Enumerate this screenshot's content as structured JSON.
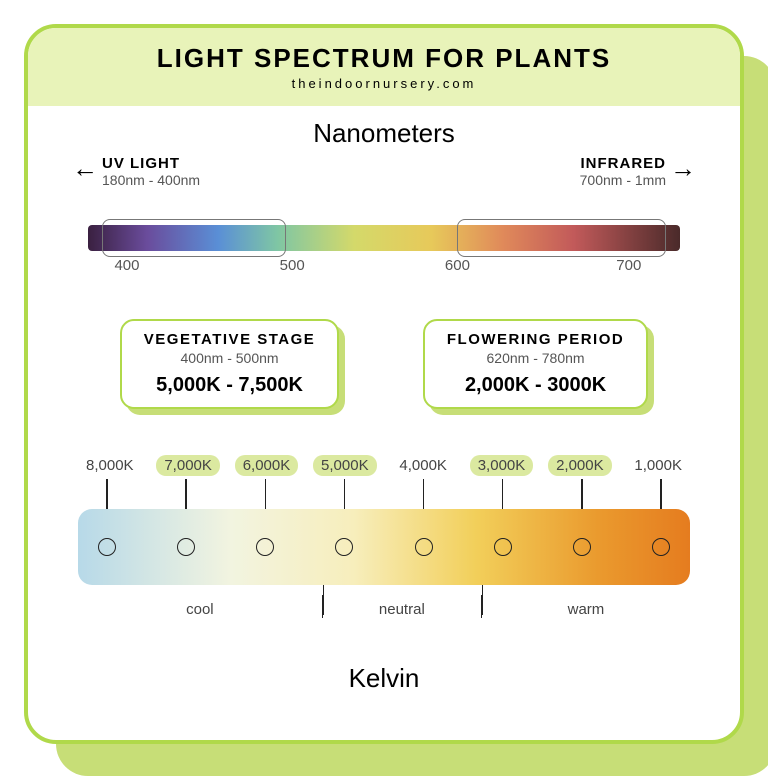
{
  "colors": {
    "border": "#b0d94a",
    "header_band": "#e8f3b9",
    "shadow": "#c7de77",
    "accent": "#b0d94a",
    "highlight": "#dbe9a0",
    "text": "#1a1a1a",
    "subtext": "#555555"
  },
  "header": {
    "title": "LIGHT SPECTRUM FOR PLANTS",
    "source": "theindoornursery.com"
  },
  "nanometers": {
    "title": "Nanometers",
    "left_label": "UV LIGHT",
    "left_range": "180nm - 400nm",
    "right_label": "INFRARED",
    "right_range": "700nm - 1mm",
    "spectrum_gradient": [
      {
        "stop": 0,
        "color": "#3a2040"
      },
      {
        "stop": 10,
        "color": "#6a4c9c"
      },
      {
        "stop": 22,
        "color": "#5a8fd6"
      },
      {
        "stop": 32,
        "color": "#7fc6a4"
      },
      {
        "stop": 45,
        "color": "#d4d96a"
      },
      {
        "stop": 58,
        "color": "#e7c95a"
      },
      {
        "stop": 70,
        "color": "#e08a5a"
      },
      {
        "stop": 82,
        "color": "#c25a5a"
      },
      {
        "stop": 100,
        "color": "#4a2a2a"
      }
    ],
    "ticks": [
      {
        "label": "400",
        "pos_pct": 8
      },
      {
        "label": "500",
        "pos_pct": 35
      },
      {
        "label": "600",
        "pos_pct": 62
      },
      {
        "label": "700",
        "pos_pct": 90
      }
    ],
    "box_uv": {
      "left_pct": 4,
      "width_pct": 30
    },
    "box_ir": {
      "left_pct": 62,
      "width_pct": 34
    }
  },
  "stages": {
    "vegetative": {
      "title": "VEGETATIVE STAGE",
      "nm": "400nm - 500nm",
      "kelvin": "5,000K - 7,500K"
    },
    "flowering": {
      "title": "FLOWERING PERIOD",
      "nm": "620nm - 780nm",
      "kelvin": "2,000K - 3000K"
    }
  },
  "kelvin": {
    "title": "Kelvin",
    "labels": [
      {
        "text": "8,000K",
        "highlight": false
      },
      {
        "text": "7,000K",
        "highlight": true
      },
      {
        "text": "6,000K",
        "highlight": true
      },
      {
        "text": "5,000K",
        "highlight": true
      },
      {
        "text": "4,000K",
        "highlight": false
      },
      {
        "text": "3,000K",
        "highlight": true
      },
      {
        "text": "2,000K",
        "highlight": true
      },
      {
        "text": "1,000K",
        "highlight": false
      }
    ],
    "bar_gradient": [
      {
        "stop": 0,
        "color": "#b7d9e8"
      },
      {
        "stop": 25,
        "color": "#f2f4e0"
      },
      {
        "stop": 45,
        "color": "#f7eebc"
      },
      {
        "stop": 65,
        "color": "#f2cf5a"
      },
      {
        "stop": 85,
        "color": "#ea9a2e"
      },
      {
        "stop": 100,
        "color": "#e57c1f"
      }
    ],
    "regions": [
      {
        "label": "cool",
        "width_pct": 40
      },
      {
        "label": "neutral",
        "width_pct": 26
      },
      {
        "label": "warm",
        "width_pct": 34
      }
    ]
  }
}
